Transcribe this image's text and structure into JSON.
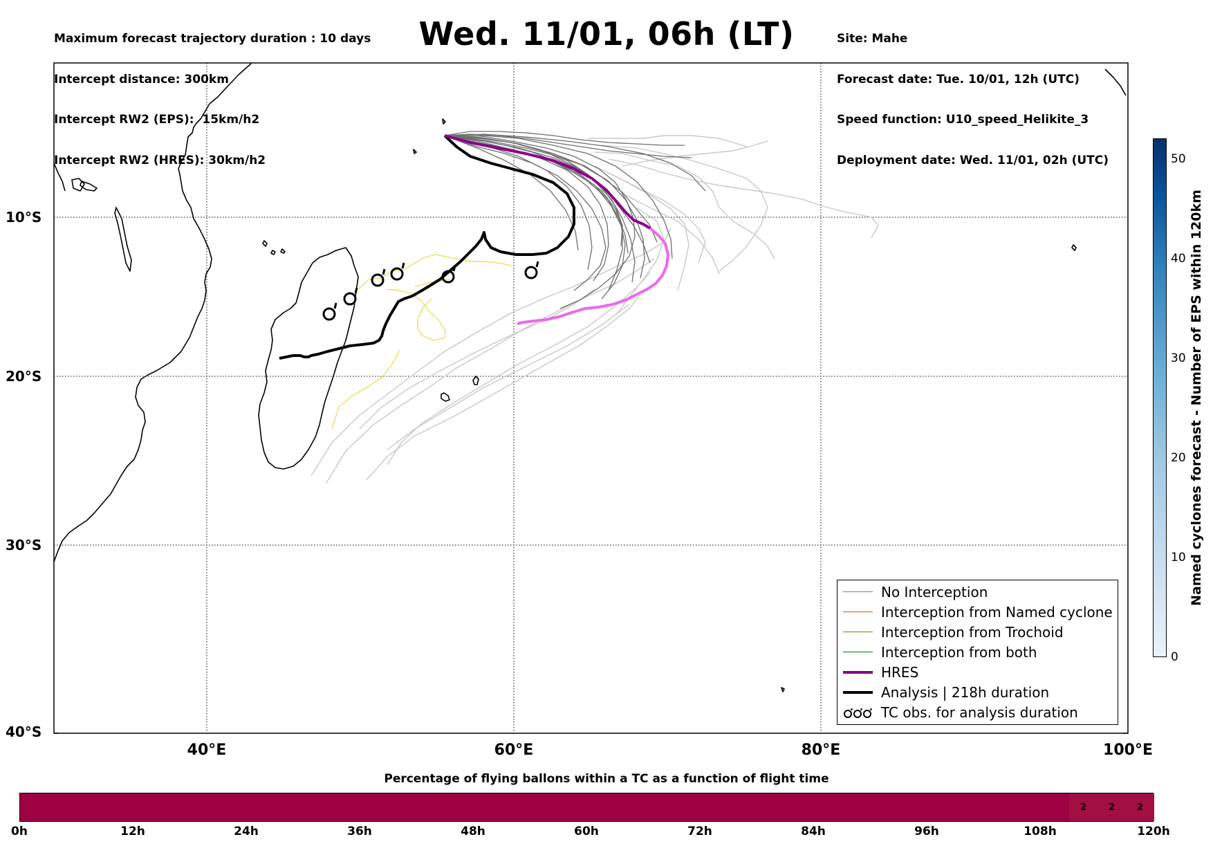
{
  "header": {
    "left_lines": [
      "Maximum forecast trajectory duration : 10 days",
      "Intercept distance: 300km",
      "Intercept RW2 (EPS):  15km/h2",
      "Intercept RW2 (HRES): 30km/h2"
    ],
    "title": "Wed. 11/01, 06h (LT)",
    "right_lines": [
      "Site: Mahe",
      "Forecast date: Tue. 10/01, 12h (UTC)",
      "Speed function: U10_speed_Helikite_3",
      "Deployment date: Wed. 11/01, 02h (UTC)"
    ]
  },
  "map": {
    "lat_labels": [
      "10°S",
      "20°S",
      "30°S",
      "40°S"
    ],
    "lon_labels": [
      "40°E",
      "60°E",
      "80°E",
      "100°E"
    ],
    "lon_range": [
      30,
      100
    ],
    "lat_range": [
      -40,
      0
    ]
  },
  "legend": {
    "items": [
      {
        "label": "No Interception",
        "color": "#808080",
        "icon": "thin-line"
      },
      {
        "label": "Interception from Named cyclone",
        "color": "#ff4500",
        "icon": "thin-line"
      },
      {
        "label": "Interception from Trochoid",
        "color": "#808000",
        "icon": "thin-line"
      },
      {
        "label": "Interception from both",
        "color": "#008000",
        "icon": "thin-line"
      },
      {
        "label": "HRES",
        "color": "#8b008b",
        "icon": "thick-line"
      },
      {
        "label": "Analysis | 218h duration",
        "color": "#000000",
        "icon": "thick-line"
      },
      {
        "label": "TC obs. for analysis duration",
        "color": "#000000",
        "icon": "cyclone-symbols"
      }
    ]
  },
  "colorbar": {
    "label": "Named cyclones forecast - Number of EPS within 120km",
    "ticks": [
      "0",
      "10",
      "20",
      "30",
      "40",
      "50"
    ],
    "colors": [
      "#eaf2fb",
      "#08306b"
    ]
  },
  "percentage_bar": {
    "title": "Percentage of flying ballons within a TC as a function of flight time",
    "ticks": [
      "0h",
      "12h",
      "24h",
      "36h",
      "48h",
      "60h",
      "72h",
      "84h",
      "96h",
      "108h",
      "120h"
    ],
    "cells": [
      "2",
      "2",
      "2"
    ],
    "color": "#9e0142"
  },
  "colors": {
    "analysis": "#000000",
    "hres_past": "#8b008b",
    "hres_future": "#ee66ee",
    "eps_grey": "#6e6e6e",
    "eps_light": "#c8c8c8",
    "tc_track": "#e8e060"
  }
}
